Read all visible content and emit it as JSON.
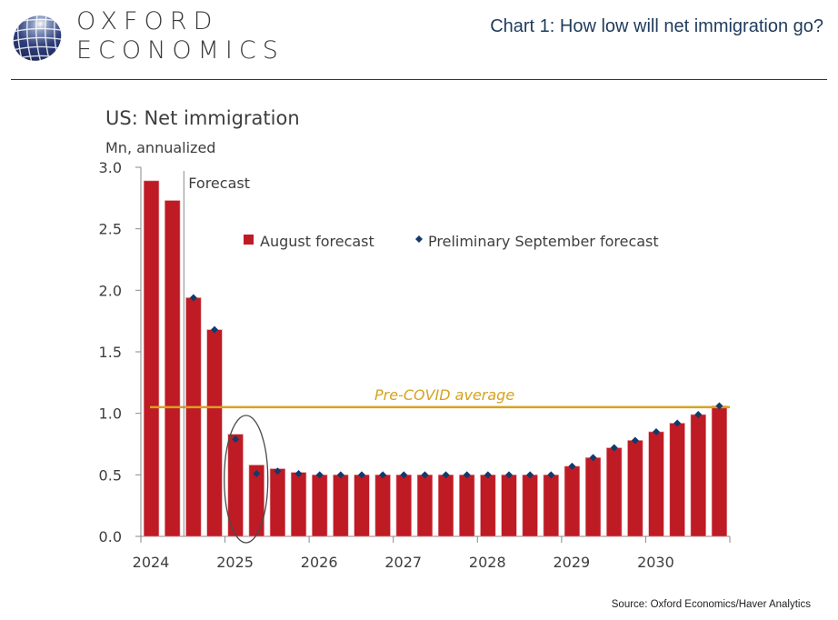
{
  "header": {
    "brand_line1": "OXFORD",
    "brand_line2": "ECONOMICS",
    "logo_icon": "globe-icon",
    "title": "Chart 1: How low will net immigration go?"
  },
  "footer": {
    "source": "Source:  Oxford Economics/Haver Analytics"
  },
  "colors": {
    "bar": "#be1b25",
    "marker": "#123a6b",
    "reference_line": "#d6a21e",
    "header_text": "#1f3b5c"
  },
  "chart_data": {
    "type": "bar",
    "title": "US: Net immigration",
    "ylabel": "Mn, annualized",
    "xlabel": "",
    "ylim": [
      0,
      3.0
    ],
    "yticks": [
      "0.0",
      "0.5",
      "1.0",
      "1.5",
      "2.0",
      "2.5",
      "3.0"
    ],
    "ytick_values": [
      0,
      0.5,
      1.0,
      1.5,
      2.0,
      2.5,
      3.0
    ],
    "xtick_labels": [
      "2024",
      "2025",
      "2026",
      "2027",
      "2028",
      "2029",
      "2030"
    ],
    "frequency": "quarterly",
    "categories": [
      "2024Q1",
      "2024Q2",
      "2024Q3",
      "2024Q4",
      "2025Q1",
      "2025Q2",
      "2025Q3",
      "2025Q4",
      "2026Q1",
      "2026Q2",
      "2026Q3",
      "2026Q4",
      "2027Q1",
      "2027Q2",
      "2027Q3",
      "2027Q4",
      "2028Q1",
      "2028Q2",
      "2028Q3",
      "2028Q4",
      "2029Q1",
      "2029Q2",
      "2029Q3",
      "2029Q4",
      "2030Q1",
      "2030Q2",
      "2030Q3",
      "2030Q4"
    ],
    "series": [
      {
        "name": "August forecast",
        "kind": "bar",
        "values": [
          2.89,
          2.73,
          1.94,
          1.68,
          0.83,
          0.58,
          0.55,
          0.52,
          0.5,
          0.5,
          0.5,
          0.5,
          0.5,
          0.5,
          0.5,
          0.5,
          0.5,
          0.5,
          0.5,
          0.5,
          0.57,
          0.64,
          0.72,
          0.78,
          0.85,
          0.92,
          0.99,
          1.06
        ]
      },
      {
        "name": "Preliminary September forecast",
        "kind": "marker",
        "values": [
          null,
          null,
          1.94,
          1.68,
          0.79,
          0.51,
          0.53,
          0.51,
          0.5,
          0.5,
          0.5,
          0.5,
          0.5,
          0.5,
          0.5,
          0.5,
          0.5,
          0.5,
          0.5,
          0.5,
          0.57,
          0.64,
          0.72,
          0.78,
          0.85,
          0.92,
          0.99,
          1.06
        ]
      }
    ],
    "reference_line": {
      "label": "Pre-COVID average",
      "value": 1.05
    },
    "forecast_marker": {
      "label": "Forecast",
      "after_category": "2024Q2"
    },
    "highlight_ellipse": {
      "categories": [
        "2025Q1",
        "2025Q2"
      ]
    },
    "legend": {
      "position": "top-center",
      "entries": [
        "August forecast",
        "Preliminary September forecast"
      ]
    },
    "grid": false
  }
}
